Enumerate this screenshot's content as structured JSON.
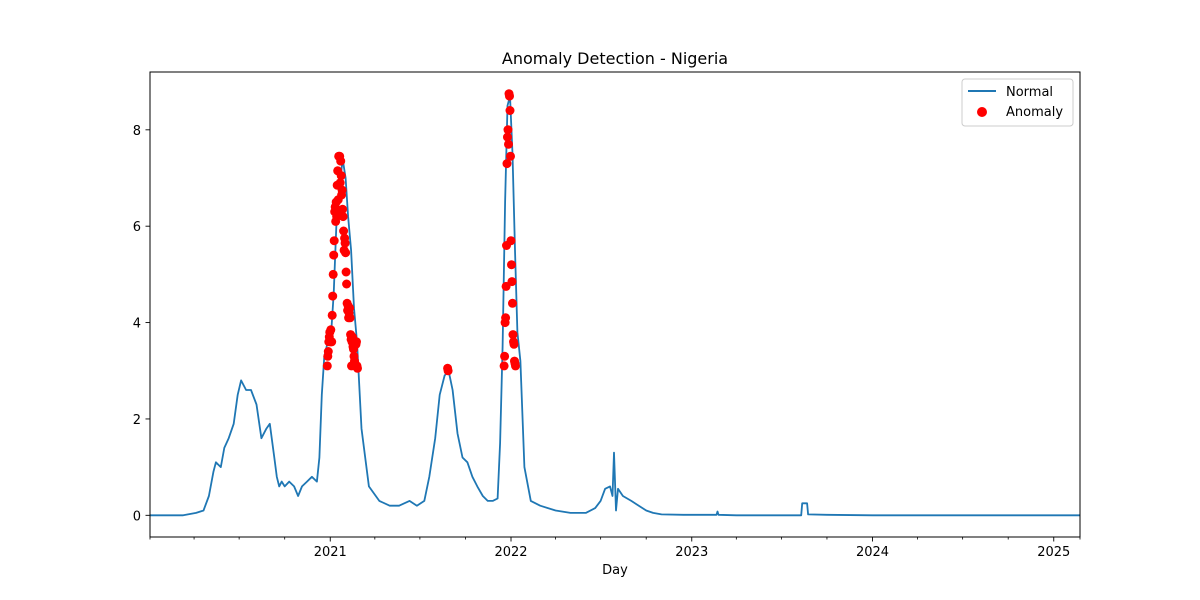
{
  "colors": {
    "normal": "#1f77b4",
    "anomaly": "#ff0000",
    "frame": "#000000",
    "legend_border": "#cccccc"
  },
  "chart_data": {
    "type": "line",
    "title": "Anomaly Detection - Nigeria",
    "xlabel": "Day",
    "ylabel": "",
    "grid": false,
    "legend_position": "top-right",
    "xlim": [
      "2020-01-03",
      "2025-02-23"
    ],
    "ylim": [
      -0.45,
      9.2
    ],
    "x_ticks": [
      {
        "date": "2021-01-01",
        "label": "2021"
      },
      {
        "date": "2022-01-01",
        "label": "2022"
      },
      {
        "date": "2023-01-01",
        "label": "2023"
      },
      {
        "date": "2024-01-01",
        "label": "2024"
      },
      {
        "date": "2025-01-01",
        "label": "2025"
      }
    ],
    "x_minor_ticks": [
      "2020-01-03",
      "2020-04-01",
      "2020-07-01",
      "2020-10-01",
      "2021-04-01",
      "2021-07-01",
      "2021-10-01",
      "2022-04-01",
      "2022-07-01",
      "2022-10-01",
      "2023-04-01",
      "2023-07-01",
      "2023-10-01",
      "2024-04-01",
      "2024-07-01",
      "2024-10-01",
      "2025-02-23"
    ],
    "y_ticks": [
      0,
      2,
      4,
      6,
      8
    ],
    "series": [
      {
        "name": "Normal",
        "style": "line",
        "x": [
          "2020-01-03",
          "2020-03-10",
          "2020-04-05",
          "2020-04-20",
          "2020-05-01",
          "2020-05-10",
          "2020-05-15",
          "2020-05-25",
          "2020-06-01",
          "2020-06-10",
          "2020-06-20",
          "2020-06-28",
          "2020-07-05",
          "2020-07-15",
          "2020-07-25",
          "2020-08-05",
          "2020-08-15",
          "2020-08-25",
          "2020-09-01",
          "2020-09-10",
          "2020-09-15",
          "2020-09-20",
          "2020-09-25",
          "2020-10-01",
          "2020-10-10",
          "2020-10-20",
          "2020-10-28",
          "2020-11-05",
          "2020-11-15",
          "2020-11-25",
          "2020-12-05",
          "2020-12-10",
          "2020-12-15",
          "2020-12-20",
          "2020-12-27",
          "2021-01-03",
          "2021-01-08",
          "2021-01-14",
          "2021-01-20",
          "2021-01-26",
          "2021-02-01",
          "2021-02-06",
          "2021-02-12",
          "2021-02-18",
          "2021-02-24",
          "2021-03-05",
          "2021-03-20",
          "2021-04-10",
          "2021-05-01",
          "2021-05-20",
          "2021-06-10",
          "2021-06-25",
          "2021-07-10",
          "2021-07-20",
          "2021-08-01",
          "2021-08-10",
          "2021-08-20",
          "2021-08-28",
          "2021-09-05",
          "2021-09-15",
          "2021-09-25",
          "2021-10-05",
          "2021-10-15",
          "2021-10-25",
          "2021-11-05",
          "2021-11-15",
          "2021-11-25",
          "2021-12-05",
          "2021-12-10",
          "2021-12-15",
          "2021-12-20",
          "2021-12-25",
          "2021-12-30",
          "2022-01-04",
          "2022-01-09",
          "2022-01-14",
          "2022-01-20",
          "2022-01-28",
          "2022-02-10",
          "2022-03-01",
          "2022-04-01",
          "2022-05-01",
          "2022-06-01",
          "2022-06-20",
          "2022-07-01",
          "2022-07-10",
          "2022-07-20",
          "2022-07-25",
          "2022-07-28",
          "2022-08-01",
          "2022-08-05",
          "2022-08-15",
          "2022-09-01",
          "2022-10-01",
          "2022-10-15",
          "2022-11-01",
          "2022-12-15",
          "2023-02-01",
          "2023-02-20",
          "2023-02-22",
          "2023-02-24",
          "2023-04-01",
          "2023-08-10",
          "2023-08-12",
          "2023-08-22",
          "2023-08-24",
          "2023-10-01",
          "2024-01-01",
          "2025-02-23"
        ],
        "y": [
          0,
          0,
          0.05,
          0.1,
          0.4,
          0.9,
          1.1,
          1.0,
          1.4,
          1.6,
          1.9,
          2.5,
          2.8,
          2.6,
          2.6,
          2.3,
          1.6,
          1.8,
          1.9,
          1.2,
          0.8,
          0.6,
          0.7,
          0.6,
          0.7,
          0.6,
          0.4,
          0.6,
          0.7,
          0.8,
          0.7,
          1.2,
          2.5,
          3.3,
          3.6,
          3.8,
          4.6,
          6.2,
          6.8,
          7.4,
          7.0,
          6.2,
          5.5,
          4.3,
          3.6,
          1.8,
          0.6,
          0.3,
          0.2,
          0.2,
          0.3,
          0.2,
          0.3,
          0.8,
          1.6,
          2.5,
          2.9,
          3.0,
          2.6,
          1.7,
          1.2,
          1.1,
          0.8,
          0.6,
          0.4,
          0.3,
          0.3,
          0.35,
          1.5,
          3.5,
          6.5,
          8.5,
          8.7,
          7.5,
          5.5,
          3.8,
          3.2,
          1.0,
          0.3,
          0.2,
          0.1,
          0.05,
          0.05,
          0.15,
          0.3,
          0.55,
          0.6,
          0.4,
          1.3,
          0.1,
          0.55,
          0.4,
          0.3,
          0.1,
          0.05,
          0.02,
          0.01,
          0.01,
          0.01,
          0.08,
          0.01,
          0.0,
          0.0,
          0.25,
          0.25,
          0.02,
          0.01,
          0.0,
          0.0
        ]
      },
      {
        "name": "Anomaly",
        "style": "scatter",
        "x": [
          "2020-12-26",
          "2020-12-27",
          "2020-12-28",
          "2020-12-29",
          "2020-12-30",
          "2020-12-31",
          "2021-01-01",
          "2021-01-02",
          "2021-01-03",
          "2021-01-04",
          "2021-01-05",
          "2021-01-06",
          "2021-01-07",
          "2021-01-08",
          "2021-01-09",
          "2021-01-10",
          "2021-01-11",
          "2021-01-12",
          "2021-01-13",
          "2021-01-14",
          "2021-01-15",
          "2021-01-16",
          "2021-01-17",
          "2021-01-18",
          "2021-01-19",
          "2021-01-20",
          "2021-01-21",
          "2021-01-22",
          "2021-01-23",
          "2021-01-24",
          "2021-01-25",
          "2021-01-26",
          "2021-01-27",
          "2021-01-28",
          "2021-01-29",
          "2021-01-30",
          "2021-01-31",
          "2021-02-01",
          "2021-02-02",
          "2021-02-03",
          "2021-02-04",
          "2021-02-05",
          "2021-02-06",
          "2021-02-07",
          "2021-02-08",
          "2021-02-09",
          "2021-02-10",
          "2021-02-11",
          "2021-02-12",
          "2021-02-13",
          "2021-02-14",
          "2021-02-15",
          "2021-02-16",
          "2021-02-17",
          "2021-02-18",
          "2021-02-19",
          "2021-02-20",
          "2021-02-21",
          "2021-02-22",
          "2021-02-23",
          "2021-02-24",
          "2021-02-25",
          "2021-08-26",
          "2021-08-27",
          "2021-12-18",
          "2021-12-19",
          "2021-12-20",
          "2021-12-21",
          "2021-12-22",
          "2021-12-23",
          "2021-12-24",
          "2021-12-25",
          "2021-12-26",
          "2021-12-27",
          "2021-12-28",
          "2021-12-29",
          "2021-12-30",
          "2021-12-31",
          "2022-01-01",
          "2022-01-02",
          "2022-01-03",
          "2022-01-04",
          "2022-01-05",
          "2022-01-06",
          "2022-01-07",
          "2022-01-08",
          "2022-01-09",
          "2022-01-10"
        ],
        "y": [
          3.1,
          3.3,
          3.4,
          3.6,
          3.7,
          3.8,
          3.6,
          3.85,
          3.6,
          3.6,
          4.15,
          4.55,
          5.0,
          5.4,
          5.7,
          6.3,
          6.4,
          6.1,
          6.5,
          6.2,
          6.85,
          7.15,
          6.55,
          7.45,
          6.25,
          7.45,
          6.9,
          7.35,
          7.05,
          6.65,
          6.75,
          6.35,
          6.2,
          5.9,
          5.5,
          5.75,
          5.65,
          5.45,
          5.05,
          4.8,
          4.4,
          4.25,
          4.35,
          4.1,
          4.2,
          4.3,
          4.1,
          3.75,
          3.65,
          3.1,
          3.6,
          3.7,
          3.5,
          3.45,
          3.3,
          3.2,
          3.15,
          3.1,
          3.55,
          3.6,
          3.1,
          3.05,
          3.05,
          3.0,
          3.1,
          3.3,
          4.0,
          4.1,
          4.75,
          5.6,
          7.3,
          7.85,
          8.0,
          7.7,
          8.75,
          8.7,
          8.4,
          7.45,
          5.7,
          5.2,
          4.85,
          4.4,
          3.75,
          3.6,
          3.55,
          3.2,
          3.15,
          3.1
        ]
      }
    ]
  }
}
